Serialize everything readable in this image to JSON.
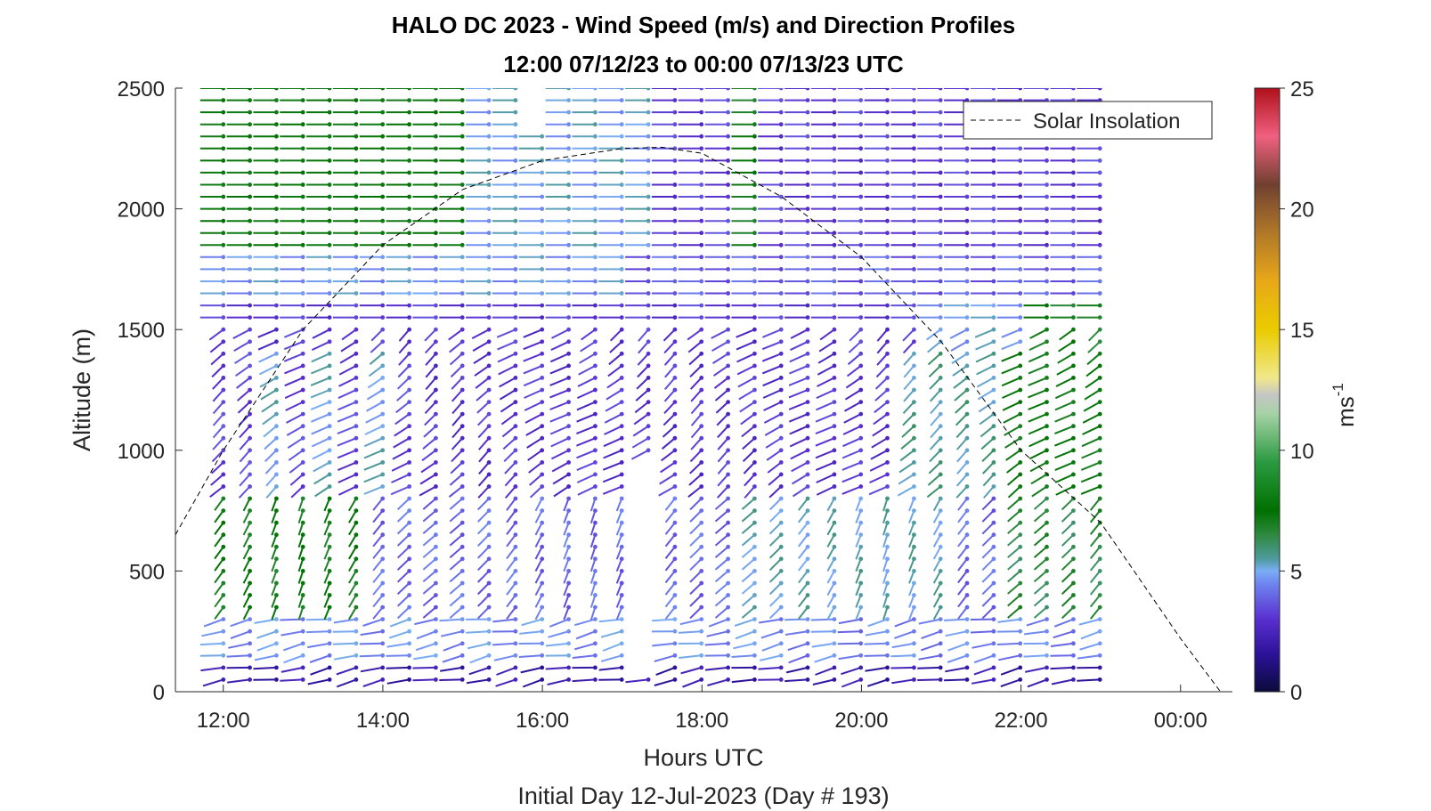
{
  "chart_data": {
    "type": "wind barb profile (scatter of arrows colored by speed)",
    "title_line1": "HALO DC 2023 - Wind Speed (m/s) and Direction Profiles",
    "title_line2": "12:00 07/12/23 to 00:00 07/13/23  UTC",
    "xlabel": "Hours UTC",
    "ylabel": "Altitude (m)",
    "footer": "Initial Day 12-Jul-2023 (Day # 193)",
    "x_ticks": [
      "12:00",
      "14:00",
      "16:00",
      "18:00",
      "20:00",
      "22:00",
      "00:00"
    ],
    "x_tick_hours": [
      12,
      14,
      16,
      18,
      20,
      22,
      24
    ],
    "xlim_hours": [
      11.4,
      24.65
    ],
    "y_ticks": [
      "0",
      "500",
      "1000",
      "1500",
      "2000",
      "2500"
    ],
    "y_tick_values": [
      0,
      500,
      1000,
      1500,
      2000,
      2500
    ],
    "ylim": [
      0,
      2500
    ],
    "profile_times_hours": [
      12.0,
      23.0
    ],
    "profile_interval_hours": 0.333,
    "altitude_spacing_m": 50,
    "legend": {
      "entry": "Solar Insolation",
      "placement": "top-right"
    },
    "solar_insolation_curve": {
      "style": "dashed black",
      "x_hours": [
        11.4,
        12,
        13,
        14,
        15,
        16,
        17,
        17.5,
        18,
        19,
        20,
        21,
        22,
        23,
        24,
        24.5
      ],
      "y_m": [
        650,
        1000,
        1500,
        1850,
        2080,
        2200,
        2250,
        2255,
        2230,
        2050,
        1800,
        1450,
        1000,
        700,
        220,
        0
      ]
    },
    "colorbar": {
      "label": "ms",
      "label_superscript": "-1",
      "range": [
        0,
        25
      ],
      "ticks": [
        "0",
        "5",
        "10",
        "15",
        "20",
        "25"
      ],
      "tick_values": [
        0,
        5,
        10,
        15,
        20,
        25
      ],
      "colormap": [
        {
          "v": 0,
          "c": "#0b0b3a"
        },
        {
          "v": 1.5,
          "c": "#2a1196"
        },
        {
          "v": 3,
          "c": "#5a2fd0"
        },
        {
          "v": 4.5,
          "c": "#6f86f0"
        },
        {
          "v": 5,
          "c": "#7aaef4"
        },
        {
          "v": 5.5,
          "c": "#4f9a9e"
        },
        {
          "v": 6.5,
          "c": "#2e8a3e"
        },
        {
          "v": 7.5,
          "c": "#007000"
        },
        {
          "v": 9.5,
          "c": "#2a9a40"
        },
        {
          "v": 11.5,
          "c": "#a5d2a5"
        },
        {
          "v": 12.3,
          "c": "#c6c6c6"
        },
        {
          "v": 13,
          "c": "#f0e88a"
        },
        {
          "v": 15,
          "c": "#eacb00"
        },
        {
          "v": 17,
          "c": "#e8a818"
        },
        {
          "v": 19,
          "c": "#b07828"
        },
        {
          "v": 21,
          "c": "#704030"
        },
        {
          "v": 23,
          "c": "#f06080"
        },
        {
          "v": 25,
          "c": "#b0101a"
        }
      ]
    }
  }
}
